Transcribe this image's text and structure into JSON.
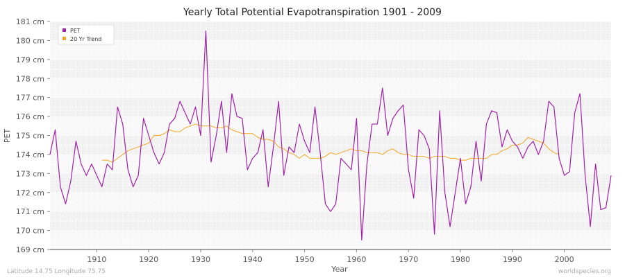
{
  "chart_data": {
    "type": "line",
    "title": "Yearly Total Potential Evapotranspiration 1901 - 2009",
    "xlabel": "Year",
    "ylabel": "PET",
    "x_ticks": [
      1910,
      1920,
      1930,
      1940,
      1950,
      1960,
      1970,
      1980,
      1990,
      2000
    ],
    "y_ticks": [
      "169 cm",
      "170 cm",
      "171 cm",
      "172 cm",
      "173 cm",
      "174 cm",
      "175 cm",
      "176 cm",
      "177 cm",
      "178 cm",
      "179 cm",
      "180 cm",
      "181 cm"
    ],
    "xlim": [
      1901,
      2009
    ],
    "ylim": [
      169,
      181
    ],
    "grid": true,
    "legend_position": "top-left",
    "series": [
      {
        "name": "PET",
        "color": "#a020a8",
        "x": [
          1901,
          1902,
          1903,
          1904,
          1905,
          1906,
          1907,
          1908,
          1909,
          1910,
          1911,
          1912,
          1913,
          1914,
          1915,
          1916,
          1917,
          1918,
          1919,
          1920,
          1921,
          1922,
          1923,
          1924,
          1925,
          1926,
          1927,
          1928,
          1929,
          1930,
          1931,
          1932,
          1933,
          1934,
          1935,
          1936,
          1937,
          1938,
          1939,
          1940,
          1941,
          1942,
          1943,
          1944,
          1945,
          1946,
          1947,
          1948,
          1949,
          1950,
          1951,
          1952,
          1953,
          1954,
          1955,
          1956,
          1957,
          1958,
          1959,
          1960,
          1961,
          1962,
          1963,
          1964,
          1965,
          1966,
          1967,
          1968,
          1969,
          1970,
          1971,
          1972,
          1973,
          1974,
          1975,
          1976,
          1977,
          1978,
          1979,
          1980,
          1981,
          1982,
          1983,
          1984,
          1985,
          1986,
          1987,
          1988,
          1989,
          1990,
          1991,
          1992,
          1993,
          1994,
          1995,
          1996,
          1997,
          1998,
          1999,
          2000,
          2001,
          2002,
          2003,
          2004,
          2005,
          2006,
          2007,
          2008,
          2009
        ],
        "values": [
          174.0,
          175.3,
          172.3,
          171.4,
          172.6,
          174.7,
          173.5,
          172.9,
          173.5,
          172.9,
          172.3,
          173.5,
          173.2,
          176.5,
          175.6,
          173.2,
          172.3,
          172.9,
          175.9,
          175.0,
          174.1,
          173.5,
          174.1,
          175.6,
          175.9,
          176.8,
          176.2,
          175.6,
          176.5,
          175.0,
          180.5,
          173.6,
          175.0,
          176.8,
          174.1,
          177.2,
          176.0,
          175.9,
          173.2,
          173.8,
          174.1,
          175.3,
          172.3,
          174.4,
          176.8,
          172.9,
          174.4,
          174.1,
          175.6,
          174.7,
          174.1,
          176.5,
          174.1,
          171.4,
          171.0,
          171.4,
          173.8,
          173.5,
          173.2,
          175.9,
          169.5,
          173.5,
          175.6,
          175.6,
          177.5,
          175.0,
          175.9,
          176.3,
          176.6,
          173.2,
          171.7,
          175.3,
          175.0,
          174.3,
          169.8,
          176.3,
          172.0,
          170.2,
          172.0,
          173.8,
          171.4,
          172.3,
          174.7,
          172.6,
          175.6,
          176.3,
          176.2,
          174.4,
          175.3,
          174.7,
          174.4,
          173.8,
          174.4,
          174.7,
          174.0,
          174.7,
          176.8,
          176.5,
          173.8,
          172.9,
          173.1,
          176.2,
          177.2,
          172.9,
          170.2,
          173.5,
          171.1,
          171.2,
          172.9
        ]
      },
      {
        "name": "20 Yr Trend",
        "color": "#f5a623",
        "x": [
          1911,
          1912,
          1913,
          1914,
          1915,
          1916,
          1917,
          1918,
          1919,
          1920,
          1921,
          1922,
          1923,
          1924,
          1925,
          1926,
          1927,
          1928,
          1929,
          1930,
          1931,
          1932,
          1933,
          1934,
          1935,
          1936,
          1937,
          1938,
          1939,
          1940,
          1941,
          1942,
          1943,
          1944,
          1945,
          1946,
          1947,
          1948,
          1949,
          1950,
          1951,
          1952,
          1953,
          1954,
          1955,
          1956,
          1957,
          1958,
          1959,
          1960,
          1961,
          1962,
          1963,
          1964,
          1965,
          1966,
          1967,
          1968,
          1969,
          1970,
          1971,
          1972,
          1973,
          1974,
          1975,
          1976,
          1977,
          1978,
          1979,
          1980,
          1981,
          1982,
          1983,
          1984,
          1985,
          1986,
          1987,
          1988,
          1989,
          1990,
          1991,
          1992,
          1993,
          1994,
          1995,
          1996,
          1997,
          1998,
          1999
        ],
        "values": [
          173.7,
          173.7,
          173.6,
          173.8,
          174.0,
          174.2,
          174.3,
          174.4,
          174.5,
          174.6,
          175.0,
          175.0,
          175.1,
          175.3,
          175.2,
          175.2,
          175.4,
          175.5,
          175.6,
          175.5,
          175.5,
          175.5,
          175.4,
          175.4,
          175.5,
          175.3,
          175.2,
          175.1,
          175.1,
          175.1,
          174.9,
          174.8,
          174.8,
          174.7,
          174.4,
          174.3,
          174.1,
          174.0,
          173.8,
          174.0,
          173.8,
          173.8,
          173.8,
          173.9,
          174.1,
          174.0,
          174.1,
          174.2,
          174.3,
          174.2,
          174.2,
          174.1,
          174.1,
          174.1,
          174.0,
          174.2,
          174.3,
          174.1,
          174.0,
          174.0,
          173.9,
          173.9,
          173.9,
          173.8,
          173.9,
          173.9,
          173.9,
          173.8,
          173.8,
          173.7,
          173.7,
          173.8,
          173.8,
          173.8,
          173.8,
          174.0,
          174.0,
          174.2,
          174.3,
          174.5,
          174.5,
          174.6,
          174.9,
          174.8,
          174.7,
          174.6,
          174.3,
          174.1,
          174.0
        ]
      }
    ]
  },
  "footer": {
    "location": "Latitude 14.75 Longitude 75.75",
    "source": "worldspecies.org"
  }
}
